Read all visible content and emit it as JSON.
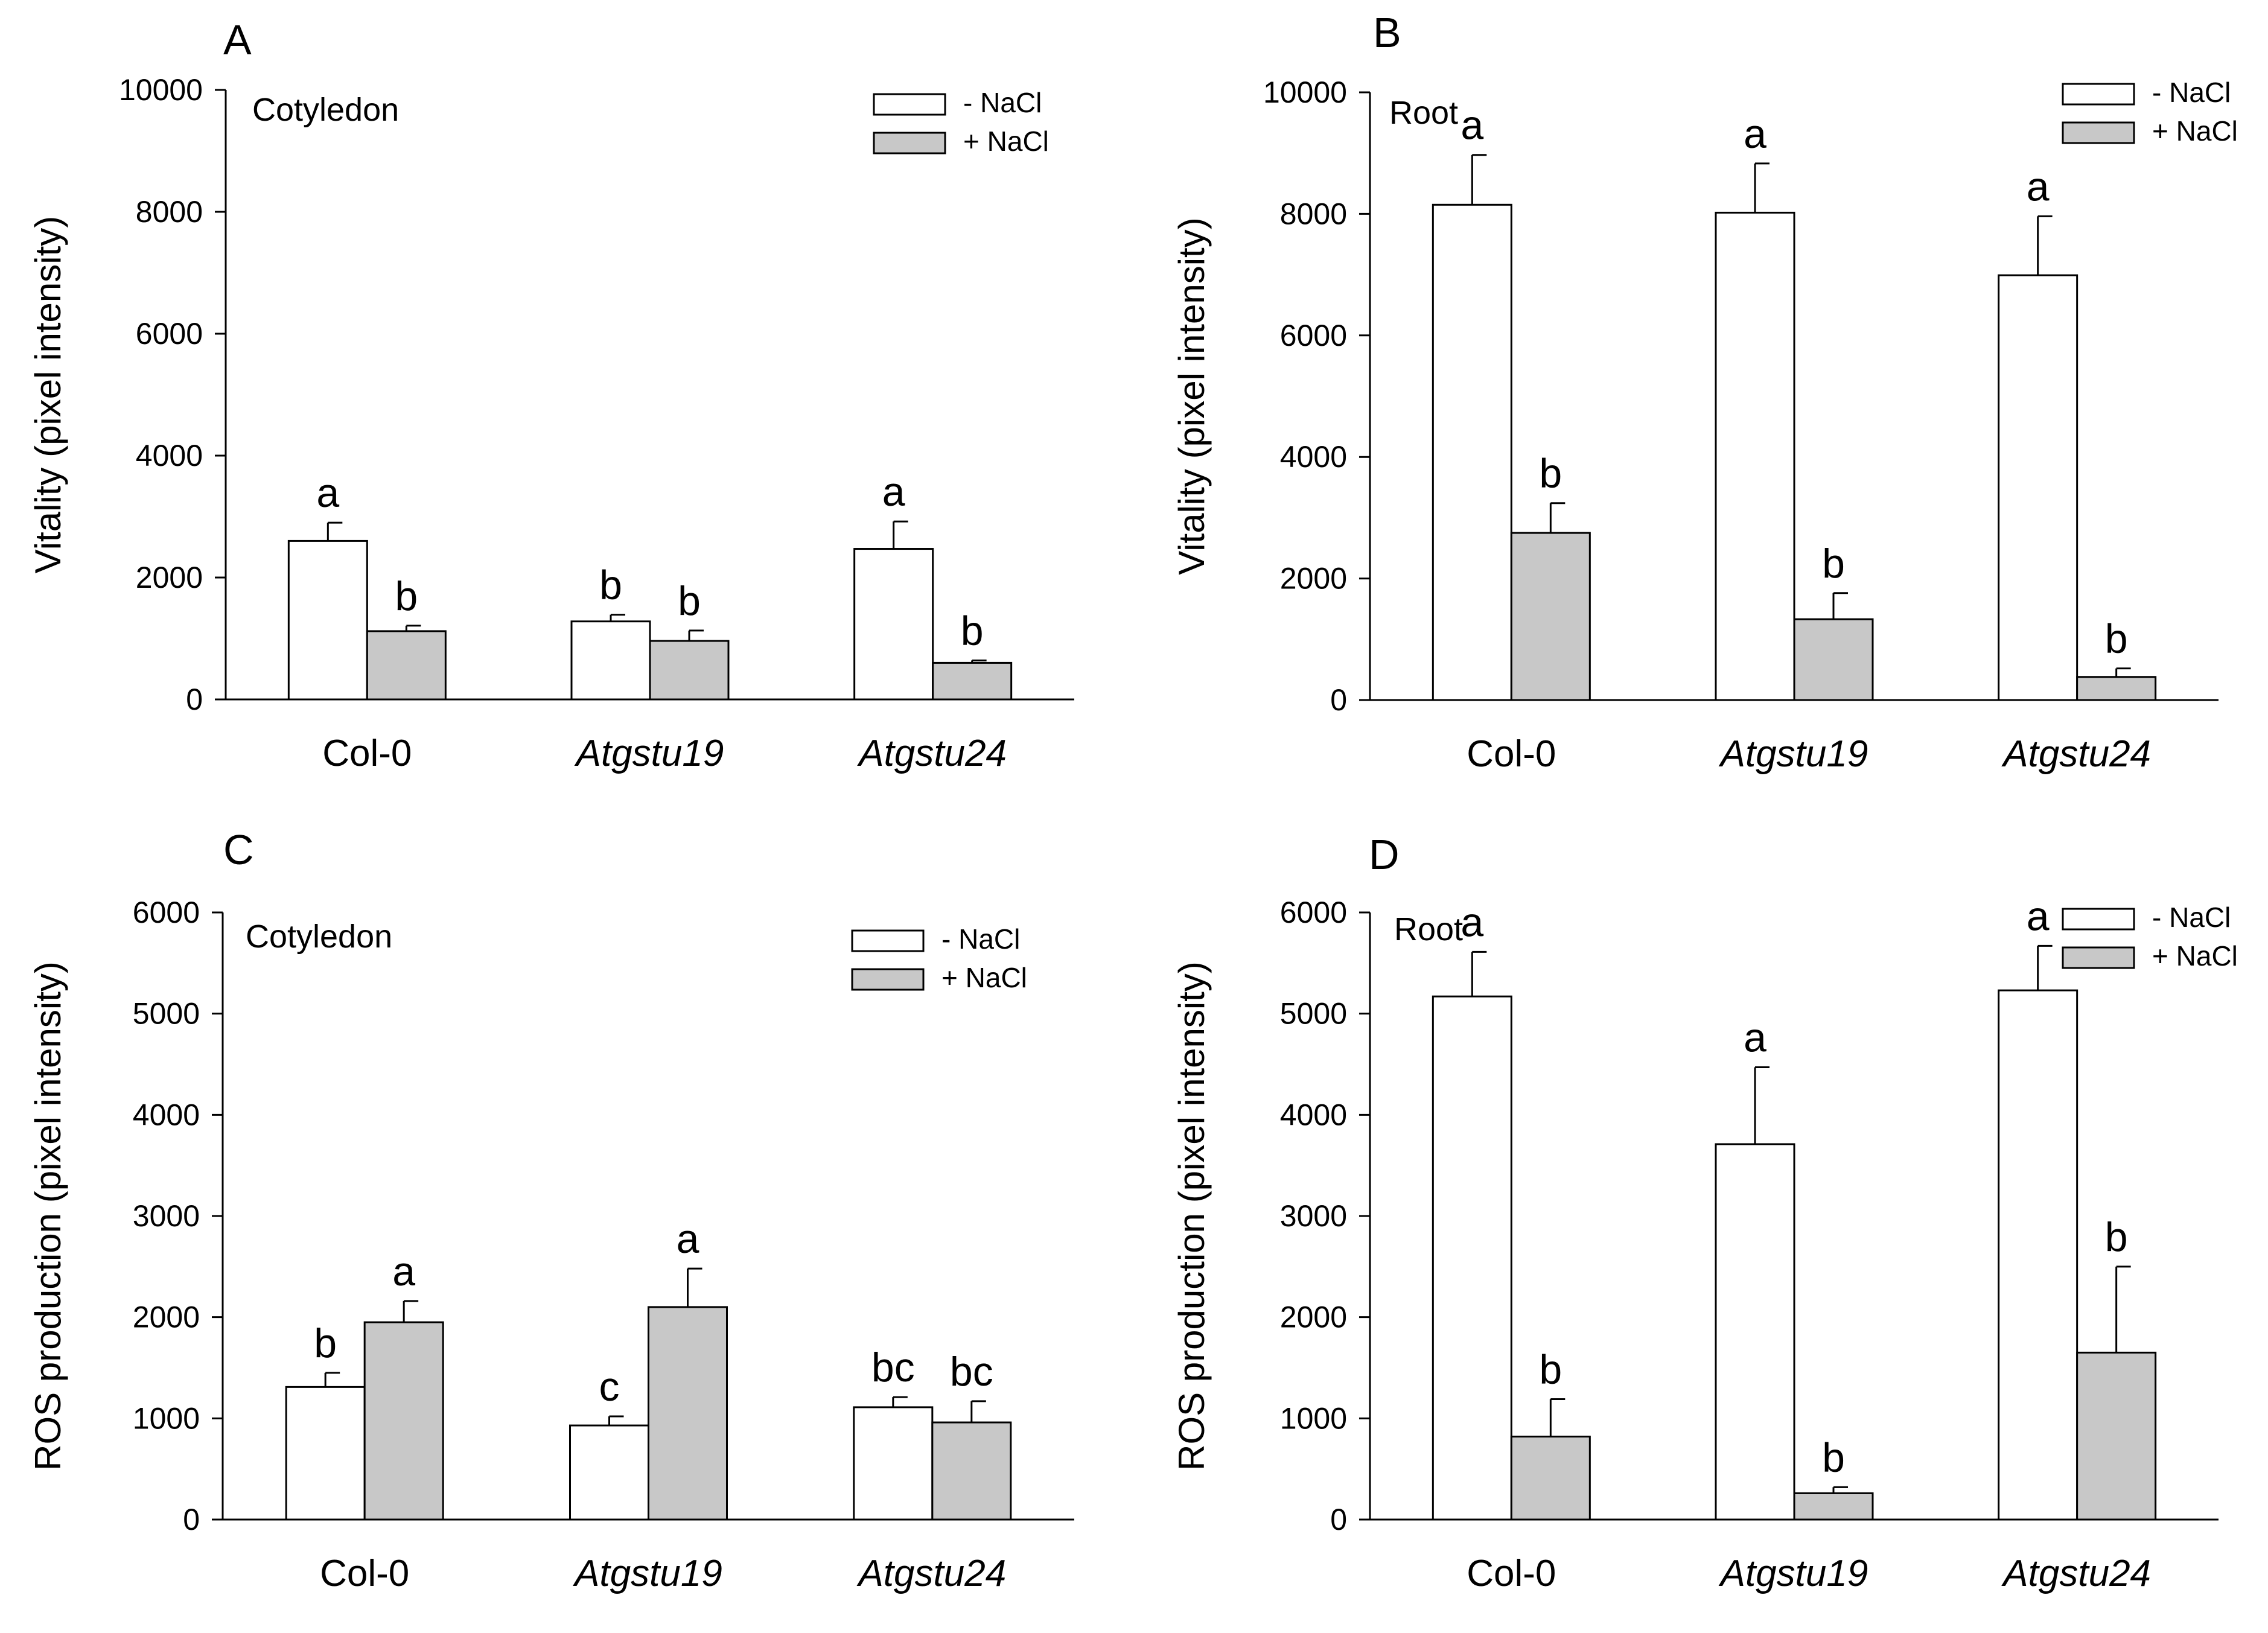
{
  "colors": {
    "minus_nacl": "#ffffff",
    "plus_nacl": "#c8c8c8",
    "stroke": "#000000"
  },
  "chart_data": [
    {
      "type": "bar",
      "panel_label": "A",
      "tissue": "Cotyledon",
      "ylabel": "Vitality (pixel intensity)",
      "ylim": [
        0,
        10000
      ],
      "yticks": [
        0,
        2000,
        4000,
        6000,
        8000,
        10000
      ],
      "categories": [
        "Col-0",
        "Atgstu19",
        "Atgstu24"
      ],
      "category_italic": [
        false,
        true,
        true
      ],
      "legend_position": "top-right",
      "series": [
        {
          "name": "- NaCl",
          "values": [
            2600,
            1280,
            2470
          ],
          "errors": [
            300,
            110,
            450
          ],
          "letters": [
            "a",
            "b",
            "a"
          ]
        },
        {
          "name": "+ NaCl",
          "values": [
            1120,
            960,
            600
          ],
          "errors": [
            90,
            170,
            40
          ],
          "letters": [
            "b",
            "b",
            "b"
          ]
        }
      ]
    },
    {
      "type": "bar",
      "panel_label": "B",
      "tissue": "Root",
      "ylabel": "Vitality (pixel intensity)",
      "ylim": [
        0,
        10000
      ],
      "yticks": [
        0,
        2000,
        4000,
        6000,
        8000,
        10000
      ],
      "categories": [
        "Col-0",
        "Atgstu19",
        "Atgstu24"
      ],
      "category_italic": [
        false,
        true,
        true
      ],
      "legend_position": "top-right",
      "series": [
        {
          "name": "- NaCl",
          "values": [
            8150,
            8020,
            6990
          ],
          "errors": [
            820,
            810,
            970
          ],
          "letters": [
            "a",
            "a",
            "a"
          ]
        },
        {
          "name": "+ NaCl",
          "values": [
            2750,
            1330,
            380
          ],
          "errors": [
            490,
            430,
            140
          ],
          "letters": [
            "b",
            "b",
            "b"
          ]
        }
      ]
    },
    {
      "type": "bar",
      "panel_label": "C",
      "tissue": "Cotyledon",
      "ylabel": "ROS production (pixel intensity)",
      "ylim": [
        0,
        6000
      ],
      "yticks": [
        0,
        1000,
        2000,
        3000,
        4000,
        5000,
        6000
      ],
      "categories": [
        "Col-0",
        "Atgstu19",
        "Atgstu24"
      ],
      "category_italic": [
        false,
        true,
        true
      ],
      "legend_position": "top-right",
      "series": [
        {
          "name": "- NaCl",
          "values": [
            1310,
            930,
            1110
          ],
          "errors": [
            140,
            90,
            100
          ],
          "letters": [
            "b",
            "c",
            "bc"
          ]
        },
        {
          "name": "+ NaCl",
          "values": [
            1950,
            2100,
            960
          ],
          "errors": [
            210,
            380,
            210
          ],
          "letters": [
            "a",
            "a",
            "bc"
          ]
        }
      ]
    },
    {
      "type": "bar",
      "panel_label": "D",
      "tissue": "Root",
      "ylabel": "ROS production (pixel intensity)",
      "ylim": [
        0,
        6000
      ],
      "yticks": [
        0,
        1000,
        2000,
        3000,
        4000,
        5000,
        6000
      ],
      "categories": [
        "Col-0",
        "Atgstu19",
        "Atgstu24"
      ],
      "category_italic": [
        false,
        true,
        true
      ],
      "legend_position": "top-right",
      "series": [
        {
          "name": "- NaCl",
          "values": [
            5170,
            3710,
            5230
          ],
          "errors": [
            440,
            760,
            440
          ],
          "letters": [
            "a",
            "a",
            "a"
          ]
        },
        {
          "name": "+ NaCl",
          "values": [
            820,
            260,
            1650
          ],
          "errors": [
            370,
            60,
            850
          ],
          "letters": [
            "b",
            "b",
            "b"
          ]
        }
      ]
    }
  ]
}
